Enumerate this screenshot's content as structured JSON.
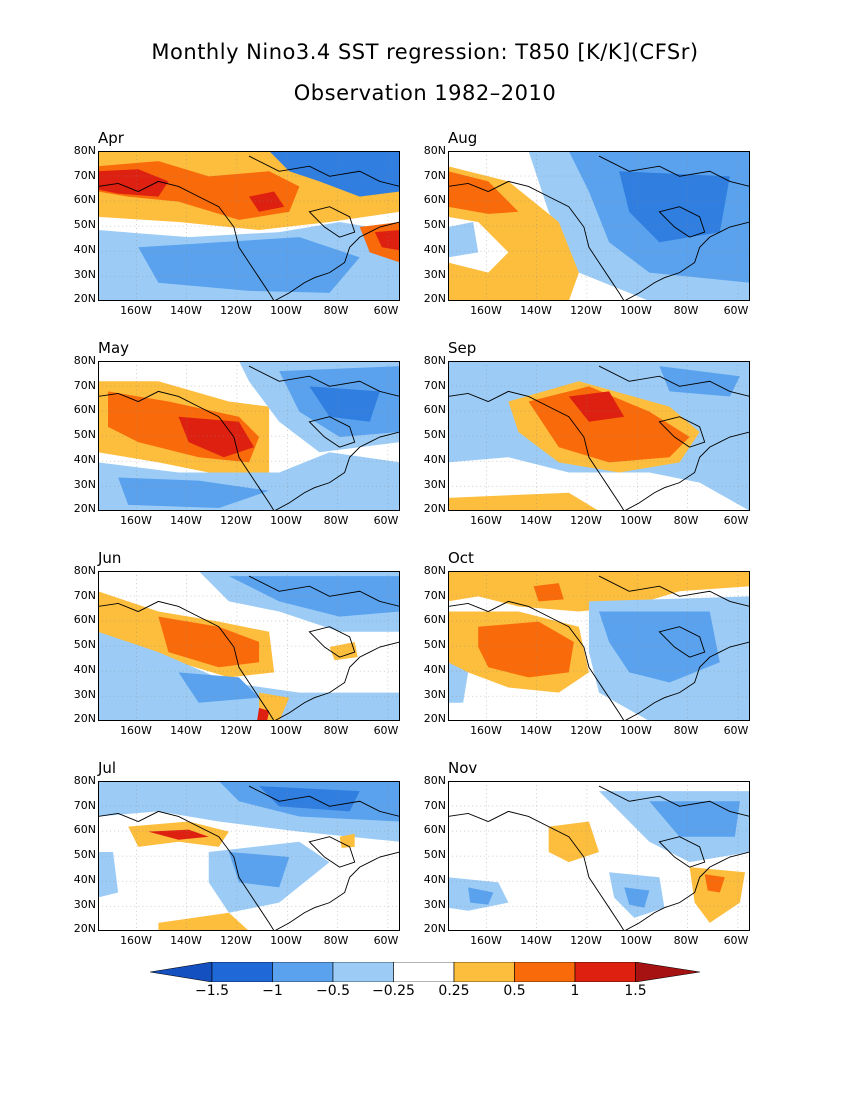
{
  "title": "Monthly Nino3.4 SST regression: T850 [K/K](CFSr)",
  "subtitle": "Observation 1982–2010",
  "lat_labels": [
    "80N",
    "70N",
    "60N",
    "50N",
    "40N",
    "30N",
    "20N"
  ],
  "lon_labels": [
    "160W",
    "140W",
    "120W",
    "100W",
    "80W",
    "60W"
  ],
  "panels": [
    {
      "month": "Apr",
      "col": 0,
      "row": 0
    },
    {
      "month": "Aug",
      "col": 1,
      "row": 0
    },
    {
      "month": "May",
      "col": 0,
      "row": 1
    },
    {
      "month": "Sep",
      "col": 1,
      "row": 1
    },
    {
      "month": "Jun",
      "col": 0,
      "row": 2
    },
    {
      "month": "Oct",
      "col": 1,
      "row": 2
    },
    {
      "month": "Jul",
      "col": 0,
      "row": 3
    },
    {
      "month": "Nov",
      "col": 1,
      "row": 3
    }
  ],
  "colorbar": {
    "labels": [
      "−1.5",
      "−1",
      "−0.5",
      "−0.25",
      "0.25",
      "0.5",
      "1",
      "1.5"
    ],
    "colors": [
      "#1f68d8",
      "#3f8ae8",
      "#5aa2ee",
      "#9cccf6",
      "#ffffff",
      "#fdbd3d",
      "#f96a0a",
      "#dd2010",
      "#a61212"
    ],
    "lowest_color": "#1450c0"
  },
  "palette": {
    "blue_dark": "#2f7ee0",
    "blue": "#5aa2ee",
    "blue_light": "#9cccf6",
    "orange_light": "#fdbd3d",
    "orange": "#f96a0a",
    "red": "#dd2010"
  }
}
